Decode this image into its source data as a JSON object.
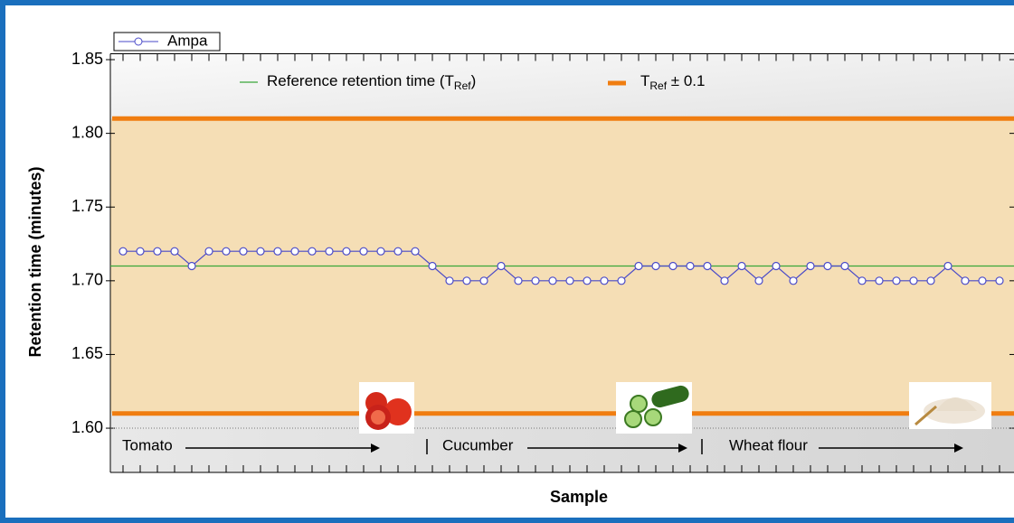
{
  "chart_data": {
    "type": "line",
    "x_label": "Sample",
    "y_label": "Retention time (minutes)",
    "categories": [
      null,
      null,
      null,
      null,
      null,
      null,
      null,
      null,
      null,
      null,
      null,
      null,
      null,
      null,
      null,
      null,
      null,
      null,
      null,
      null,
      null,
      null,
      null,
      null,
      null,
      null,
      null,
      null,
      null,
      null,
      null,
      null,
      null,
      null,
      null,
      null,
      null,
      null,
      null,
      null,
      null,
      null,
      null,
      null,
      null,
      null,
      null,
      null,
      null,
      null,
      null,
      null
    ],
    "series": [
      {
        "name": "Ampa",
        "color": "#4a4ac8",
        "values": [
          1.72,
          1.72,
          1.72,
          1.72,
          1.71,
          1.72,
          1.72,
          1.72,
          1.72,
          1.72,
          1.72,
          1.72,
          1.72,
          1.72,
          1.72,
          1.72,
          1.72,
          1.72,
          1.71,
          1.7,
          1.7,
          1.7,
          1.71,
          1.7,
          1.7,
          1.7,
          1.7,
          1.7,
          1.7,
          1.7,
          1.71,
          1.71,
          1.71,
          1.71,
          1.71,
          1.7,
          1.71,
          1.7,
          1.71,
          1.7,
          1.71,
          1.71,
          1.71,
          1.7,
          1.7,
          1.7,
          1.7,
          1.7,
          1.71,
          1.7,
          1.7,
          1.7
        ]
      }
    ],
    "reference": {
      "value": 1.71,
      "color": "#3aa63a",
      "label": {
        "text": "Reference retention time (T",
        "sub": "Ref",
        "tail": ")"
      }
    },
    "band": {
      "values": [
        1.61,
        1.81
      ],
      "color": "#f07d10",
      "fill": "#f5deb5",
      "label": {
        "text": "T",
        "sub": "Ref",
        "tail": " ± 0.1"
      }
    },
    "annotations": [
      "Tomato",
      "Cucumber",
      "Wheat flour"
    ],
    "ylim": [
      1.57,
      1.854
    ],
    "yticks": [
      {
        "value": 1.6,
        "label": "1.60"
      },
      1.65,
      {
        "value": 1.7,
        "label": "1.70"
      },
      1.75,
      {
        "value": 1.8,
        "label": "1.80"
      },
      1.85
    ]
  }
}
